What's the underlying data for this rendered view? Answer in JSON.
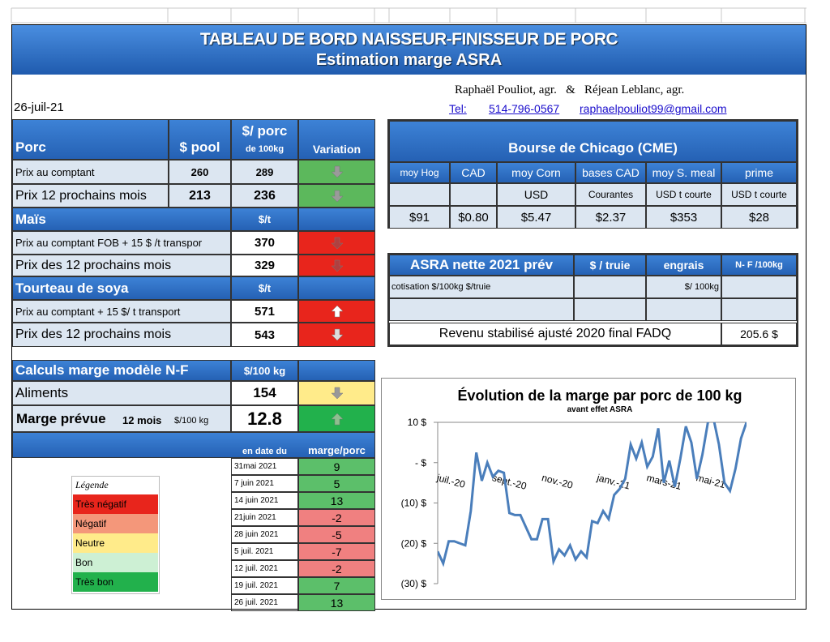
{
  "header": {
    "title": "TABLEAU DE BORD NAISSEUR-FINISSEUR  DE PORC",
    "subtitle": "Estimation marge ASRA",
    "date": "26-juil-21",
    "authors": "Raphaël Pouliot, agr.   &   Réjean Leblanc, agr.",
    "tel_label": "Tel:",
    "tel": "514-796-0567",
    "email": "raphaelpouliot99@gmail.com"
  },
  "porc": {
    "headers": [
      "Porc",
      "$ pool",
      "$/ porc",
      "de 100kg",
      "Variation"
    ],
    "rows": [
      [
        "Prix au comptant",
        "260",
        "289"
      ],
      [
        "Prix 12 prochains mois",
        "213",
        "236"
      ]
    ]
  },
  "mais": {
    "headers": [
      "Maïs",
      "$/t"
    ],
    "rows": [
      [
        "Prix au comptant  FOB + 15 $ /t transpor",
        "370"
      ],
      [
        "Prix des 12 prochains mois",
        "329"
      ]
    ]
  },
  "soya": {
    "headers": [
      "Tourteau de soya",
      "$/t"
    ],
    "rows": [
      [
        "Prix au comptant  + 15 $/ t  transport",
        "571"
      ],
      [
        "Prix des 12 prochains mois",
        "543"
      ]
    ]
  },
  "chicago": {
    "title": "Bourse de Chicago (CME)",
    "headers": [
      "moy Hog",
      "CAD",
      "moy Corn",
      "bases CAD",
      "moy S. meal",
      "prime"
    ],
    "units": [
      "USD",
      "Courantes",
      "USD t courte",
      "USD t courte"
    ],
    "values": [
      "$91",
      "$0.80",
      "$5.47",
      "$2.37",
      "$353",
      "$28"
    ]
  },
  "asra": {
    "headers": [
      "ASRA nette 2021 prév",
      "$ / truie",
      "engrais",
      "N- F /100kg"
    ],
    "cotisation": "cotisation $/100kg  $/truie",
    "unit": "$/ 100kg",
    "revenu_label": "Revenu stabilisé ajusté 2020 final FADQ",
    "revenu_value": "205.6 $"
  },
  "calculs": {
    "header": "Calculs marge  modèle N-F",
    "unit": "$/100 kg",
    "aliments_label": "Aliments",
    "aliments": "154",
    "marge_label": "Marge prévue",
    "marge_period": "12 mois",
    "marge_unit": "$/100 kg",
    "marge": "12.8"
  },
  "history": {
    "headers": [
      "en date du",
      "marge/porc"
    ],
    "dates": [
      "31mai 2021",
      "7 juin 2021",
      "14 juin 2021",
      "21juin 2021",
      "28 juin 2021",
      "5 juil. 2021",
      "12 juil. 2021",
      "19 juil. 2021",
      "26 juil. 2021"
    ],
    "values": [
      9,
      5,
      13,
      -2,
      -5,
      -7,
      -2,
      7,
      13
    ]
  },
  "legend": {
    "title": "Légende",
    "items": [
      "Très négatif",
      "Négatif",
      "Neutre",
      "Bon",
      "Très bon"
    ]
  },
  "chart_data": {
    "type": "line",
    "title": "Évolution de la marge par porc de 100 kg",
    "subtitle": "avant effet ASRA",
    "color": "#4a7ebb",
    "categories": [
      null,
      null,
      null,
      "juil.-20",
      null,
      null,
      null,
      null,
      null,
      null,
      null,
      null,
      null,
      "sept.-20",
      null,
      null,
      null,
      null,
      null,
      null,
      null,
      null,
      "nov.-20",
      null,
      null,
      null,
      null,
      null,
      null,
      null,
      null,
      null,
      "janv.-21",
      null,
      null,
      null,
      null,
      null,
      null,
      null,
      null,
      "mars-21",
      null,
      null,
      null,
      null,
      null,
      null,
      null,
      null,
      "mai-21",
      null,
      null,
      null,
      null,
      null,
      null
    ],
    "values": [
      -22,
      -25,
      -19.5,
      -19.5,
      -20,
      -20.5,
      -12,
      2.5,
      -4.5,
      0,
      -3.5,
      -2,
      -2.5,
      -12.5,
      -13,
      -13,
      -16,
      -19,
      -19,
      -14,
      -14,
      -24.5,
      -21.5,
      -23,
      -20.5,
      -24,
      -22,
      -23.5,
      -14.5,
      -15,
      -12,
      -14,
      -8,
      -6.5,
      -4,
      4.5,
      1,
      5,
      -1,
      1.5,
      8.5,
      -5,
      0.5,
      -6,
      1,
      9,
      5,
      -4,
      2,
      10,
      11,
      4.5,
      -5,
      -7,
      -1.5,
      6,
      10
    ],
    "ylim": [
      -30,
      10
    ],
    "yticks": [
      {
        "value": -30,
        "label": "(30) $"
      },
      {
        "value": -20,
        "label": "(20) $"
      },
      {
        "value": -10,
        "label": "(10) $"
      },
      {
        "value": 0,
        "label": "-  $"
      },
      {
        "value": 10,
        "label": "10 $"
      }
    ],
    "grid": false
  }
}
